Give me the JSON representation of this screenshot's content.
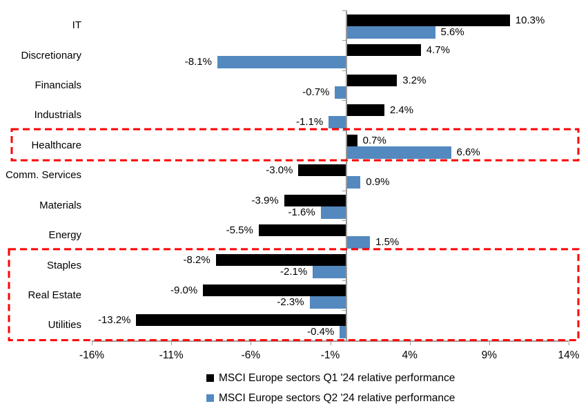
{
  "chart_data": {
    "type": "bar",
    "orientation": "horizontal",
    "categories": [
      "IT",
      "Discretionary",
      "Financials",
      "Industrials",
      "Healthcare",
      "Comm. Services",
      "Materials",
      "Energy",
      "Staples",
      "Real Estate",
      "Utilities"
    ],
    "series": [
      {
        "name": "MSCI Europe sectors Q1 '24 relative performance",
        "color": "#000000",
        "values": [
          10.3,
          4.7,
          3.2,
          2.4,
          0.7,
          -3.0,
          -3.9,
          -5.5,
          -8.2,
          -9.0,
          -13.2
        ],
        "labels": [
          "10.3%",
          "4.7%",
          "3.2%",
          "2.4%",
          "0.7%",
          "-3.0%",
          "-3.9%",
          "-5.5%",
          "-8.2%",
          "-9.0%",
          "-13.2%"
        ]
      },
      {
        "name": "MSCI Europe sectors Q2 '24 relative performance",
        "color": "#5389BE",
        "values": [
          5.6,
          -8.1,
          -0.7,
          -1.1,
          6.6,
          0.9,
          -1.6,
          1.5,
          -2.1,
          -2.3,
          -0.4
        ],
        "labels": [
          "5.6%",
          "-8.1%",
          "-0.7%",
          "-1.1%",
          "6.6%",
          "0.9%",
          "-1.6%",
          "1.5%",
          "-2.1%",
          "-2.3%",
          "-0.4%"
        ]
      }
    ],
    "x_axis": {
      "min": -16,
      "max": 14,
      "tick_values": [
        -16,
        -11,
        -6,
        -1,
        4,
        9,
        14
      ],
      "tick_labels": [
        "-16%",
        "-11%",
        "-6%",
        "-1%",
        "4%",
        "9%",
        "14%"
      ]
    },
    "title": "",
    "xlabel": "",
    "ylabel": "",
    "grid": false,
    "legend_position": "bottom",
    "highlights": [
      {
        "name": "healthcare",
        "from_category": "Healthcare",
        "to_category": "Healthcare",
        "color": "#FE0000"
      },
      {
        "name": "defensives",
        "from_category": "Staples",
        "to_category": "Utilities",
        "color": "#FE0000"
      }
    ]
  },
  "colors": {
    "series_q1": "#000000",
    "series_q2": "#5389BE",
    "axis": "#9b9b9b",
    "highlight": "#FE0000",
    "background": "#ffffff",
    "text": "#000000"
  }
}
